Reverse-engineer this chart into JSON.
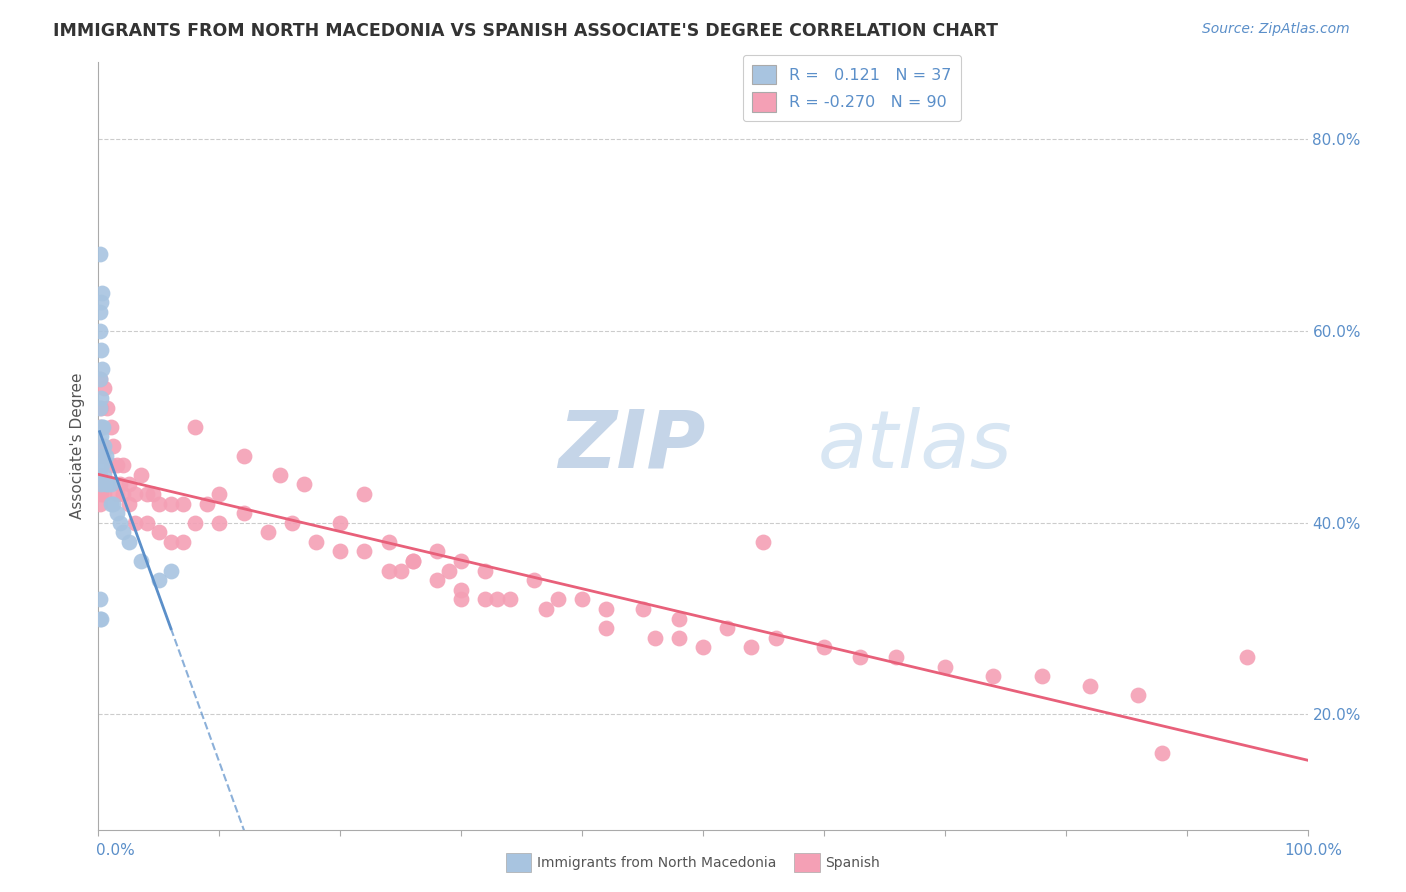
{
  "title": "IMMIGRANTS FROM NORTH MACEDONIA VS SPANISH ASSOCIATE'S DEGREE CORRELATION CHART",
  "source_text": "Source: ZipAtlas.com",
  "ylabel": "Associate's Degree",
  "ytick_labels": [
    "20.0%",
    "40.0%",
    "60.0%",
    "80.0%"
  ],
  "ytick_values": [
    0.2,
    0.4,
    0.6,
    0.8
  ],
  "xlim": [
    0.0,
    1.0
  ],
  "ylim": [
    0.08,
    0.88
  ],
  "color_blue": "#a8c4e0",
  "color_pink": "#f4a0b5",
  "color_blue_line": "#5b8fc9",
  "color_pink_line": "#e8607a",
  "watermark_color": "#d0dff0",
  "blue_scatter_x": [
    0.001,
    0.001,
    0.001,
    0.001,
    0.001,
    0.001,
    0.001,
    0.002,
    0.002,
    0.002,
    0.002,
    0.002,
    0.002,
    0.003,
    0.003,
    0.003,
    0.004,
    0.004,
    0.005,
    0.005,
    0.006,
    0.006,
    0.008,
    0.01,
    0.01,
    0.012,
    0.015,
    0.018,
    0.02,
    0.025,
    0.035,
    0.05,
    0.002,
    0.003,
    0.06,
    0.001,
    0.001
  ],
  "blue_scatter_y": [
    0.68,
    0.62,
    0.6,
    0.55,
    0.52,
    0.5,
    0.46,
    0.63,
    0.58,
    0.53,
    0.49,
    0.46,
    0.44,
    0.56,
    0.5,
    0.46,
    0.5,
    0.47,
    0.48,
    0.45,
    0.47,
    0.44,
    0.44,
    0.44,
    0.42,
    0.42,
    0.41,
    0.4,
    0.39,
    0.38,
    0.36,
    0.34,
    0.3,
    0.64,
    0.35,
    0.32,
    0.3
  ],
  "pink_scatter_x": [
    0.001,
    0.001,
    0.001,
    0.001,
    0.002,
    0.002,
    0.002,
    0.003,
    0.003,
    0.005,
    0.005,
    0.007,
    0.01,
    0.01,
    0.012,
    0.015,
    0.015,
    0.018,
    0.02,
    0.02,
    0.025,
    0.025,
    0.03,
    0.03,
    0.035,
    0.04,
    0.04,
    0.045,
    0.05,
    0.05,
    0.06,
    0.06,
    0.07,
    0.07,
    0.08,
    0.09,
    0.1,
    0.1,
    0.12,
    0.14,
    0.16,
    0.18,
    0.2,
    0.2,
    0.22,
    0.24,
    0.24,
    0.26,
    0.28,
    0.28,
    0.3,
    0.3,
    0.32,
    0.32,
    0.34,
    0.36,
    0.38,
    0.4,
    0.42,
    0.45,
    0.48,
    0.52,
    0.56,
    0.6,
    0.63,
    0.66,
    0.7,
    0.74,
    0.78,
    0.82,
    0.86,
    0.55,
    0.48,
    0.25,
    0.3,
    0.33,
    0.37,
    0.42,
    0.46,
    0.5,
    0.54,
    0.26,
    0.29,
    0.95,
    0.88,
    0.08,
    0.12,
    0.15,
    0.17,
    0.22
  ],
  "pink_scatter_y": [
    0.55,
    0.5,
    0.45,
    0.42,
    0.52,
    0.47,
    0.43,
    0.48,
    0.44,
    0.54,
    0.43,
    0.52,
    0.5,
    0.46,
    0.48,
    0.46,
    0.43,
    0.44,
    0.46,
    0.43,
    0.44,
    0.42,
    0.43,
    0.4,
    0.45,
    0.43,
    0.4,
    0.43,
    0.42,
    0.39,
    0.42,
    0.38,
    0.42,
    0.38,
    0.4,
    0.42,
    0.43,
    0.4,
    0.41,
    0.39,
    0.4,
    0.38,
    0.4,
    0.37,
    0.37,
    0.38,
    0.35,
    0.36,
    0.37,
    0.34,
    0.36,
    0.32,
    0.35,
    0.32,
    0.32,
    0.34,
    0.32,
    0.32,
    0.31,
    0.31,
    0.3,
    0.29,
    0.28,
    0.27,
    0.26,
    0.26,
    0.25,
    0.24,
    0.24,
    0.23,
    0.22,
    0.38,
    0.28,
    0.35,
    0.33,
    0.32,
    0.31,
    0.29,
    0.28,
    0.27,
    0.27,
    0.36,
    0.35,
    0.26,
    0.16,
    0.5,
    0.47,
    0.45,
    0.44,
    0.43
  ]
}
